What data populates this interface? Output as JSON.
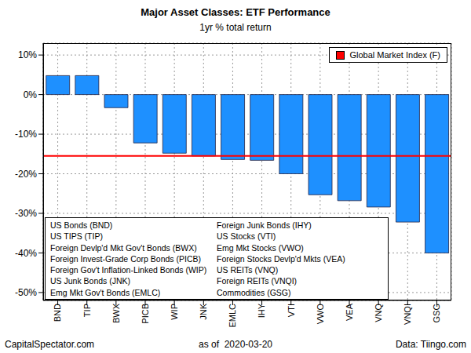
{
  "chart_data": {
    "type": "bar",
    "title": "Major Asset Classes: ETF Performance",
    "subtitle": "1yr % total return",
    "categories": [
      "BND",
      "TIP",
      "BWX",
      "PICB",
      "WIP",
      "JNK",
      "EMLC",
      "IHY",
      "VTI",
      "VWO",
      "VEA",
      "VNQ",
      "VNQI",
      "GSG"
    ],
    "values": [
      4.8,
      4.8,
      -3.3,
      -12.2,
      -14.8,
      -15.5,
      -16.4,
      -16.6,
      -20.0,
      -25.3,
      -26.8,
      -28.4,
      -32.2,
      -40.0
    ],
    "color": "#1e90ff",
    "ylim": [
      -52,
      13
    ],
    "yticks": [
      {
        "value": -50,
        "label": "-50%"
      },
      {
        "value": -40,
        "label": "-40%"
      },
      {
        "value": -30,
        "label": "-30%"
      },
      {
        "value": -20,
        "label": "-20%"
      },
      {
        "value": -10,
        "label": "-10%"
      },
      {
        "value": 0,
        "label": "0%"
      },
      {
        "value": 10,
        "label": "10%"
      }
    ],
    "grid": true,
    "legend": "top right",
    "reference_line": {
      "name": "Global Market Index (F)",
      "value": -15.5,
      "color": "#ff0000"
    },
    "key": [
      "US Bonds (BND)",
      "US TIPS (TIP)",
      "Foreign Devlp'd Mkt Gov't Bonds (BWX)",
      "Foreign Invest-Grade Corp Bonds (PICB)",
      "Foreign Gov't Inflation-Linked Bonds (WIP)",
      "US Junk Bonds (JNK)",
      "Emg Mkt Gov't Bonds (EMLC)",
      "Foreign Junk Bonds (IHY)",
      "US Stocks (VTI)",
      "Emg Mkt Stocks (VWO)",
      "Foreign Stocks Devlp'd Mkts (VEA)",
      "US REITs (VNQ)",
      "Foreign REITs (VNQI)",
      "Commodities (GSG)"
    ],
    "annotations": [
      "CapitalSpectator.com",
      "as of  2020-03-20",
      "Data: Tiingo.com"
    ]
  }
}
